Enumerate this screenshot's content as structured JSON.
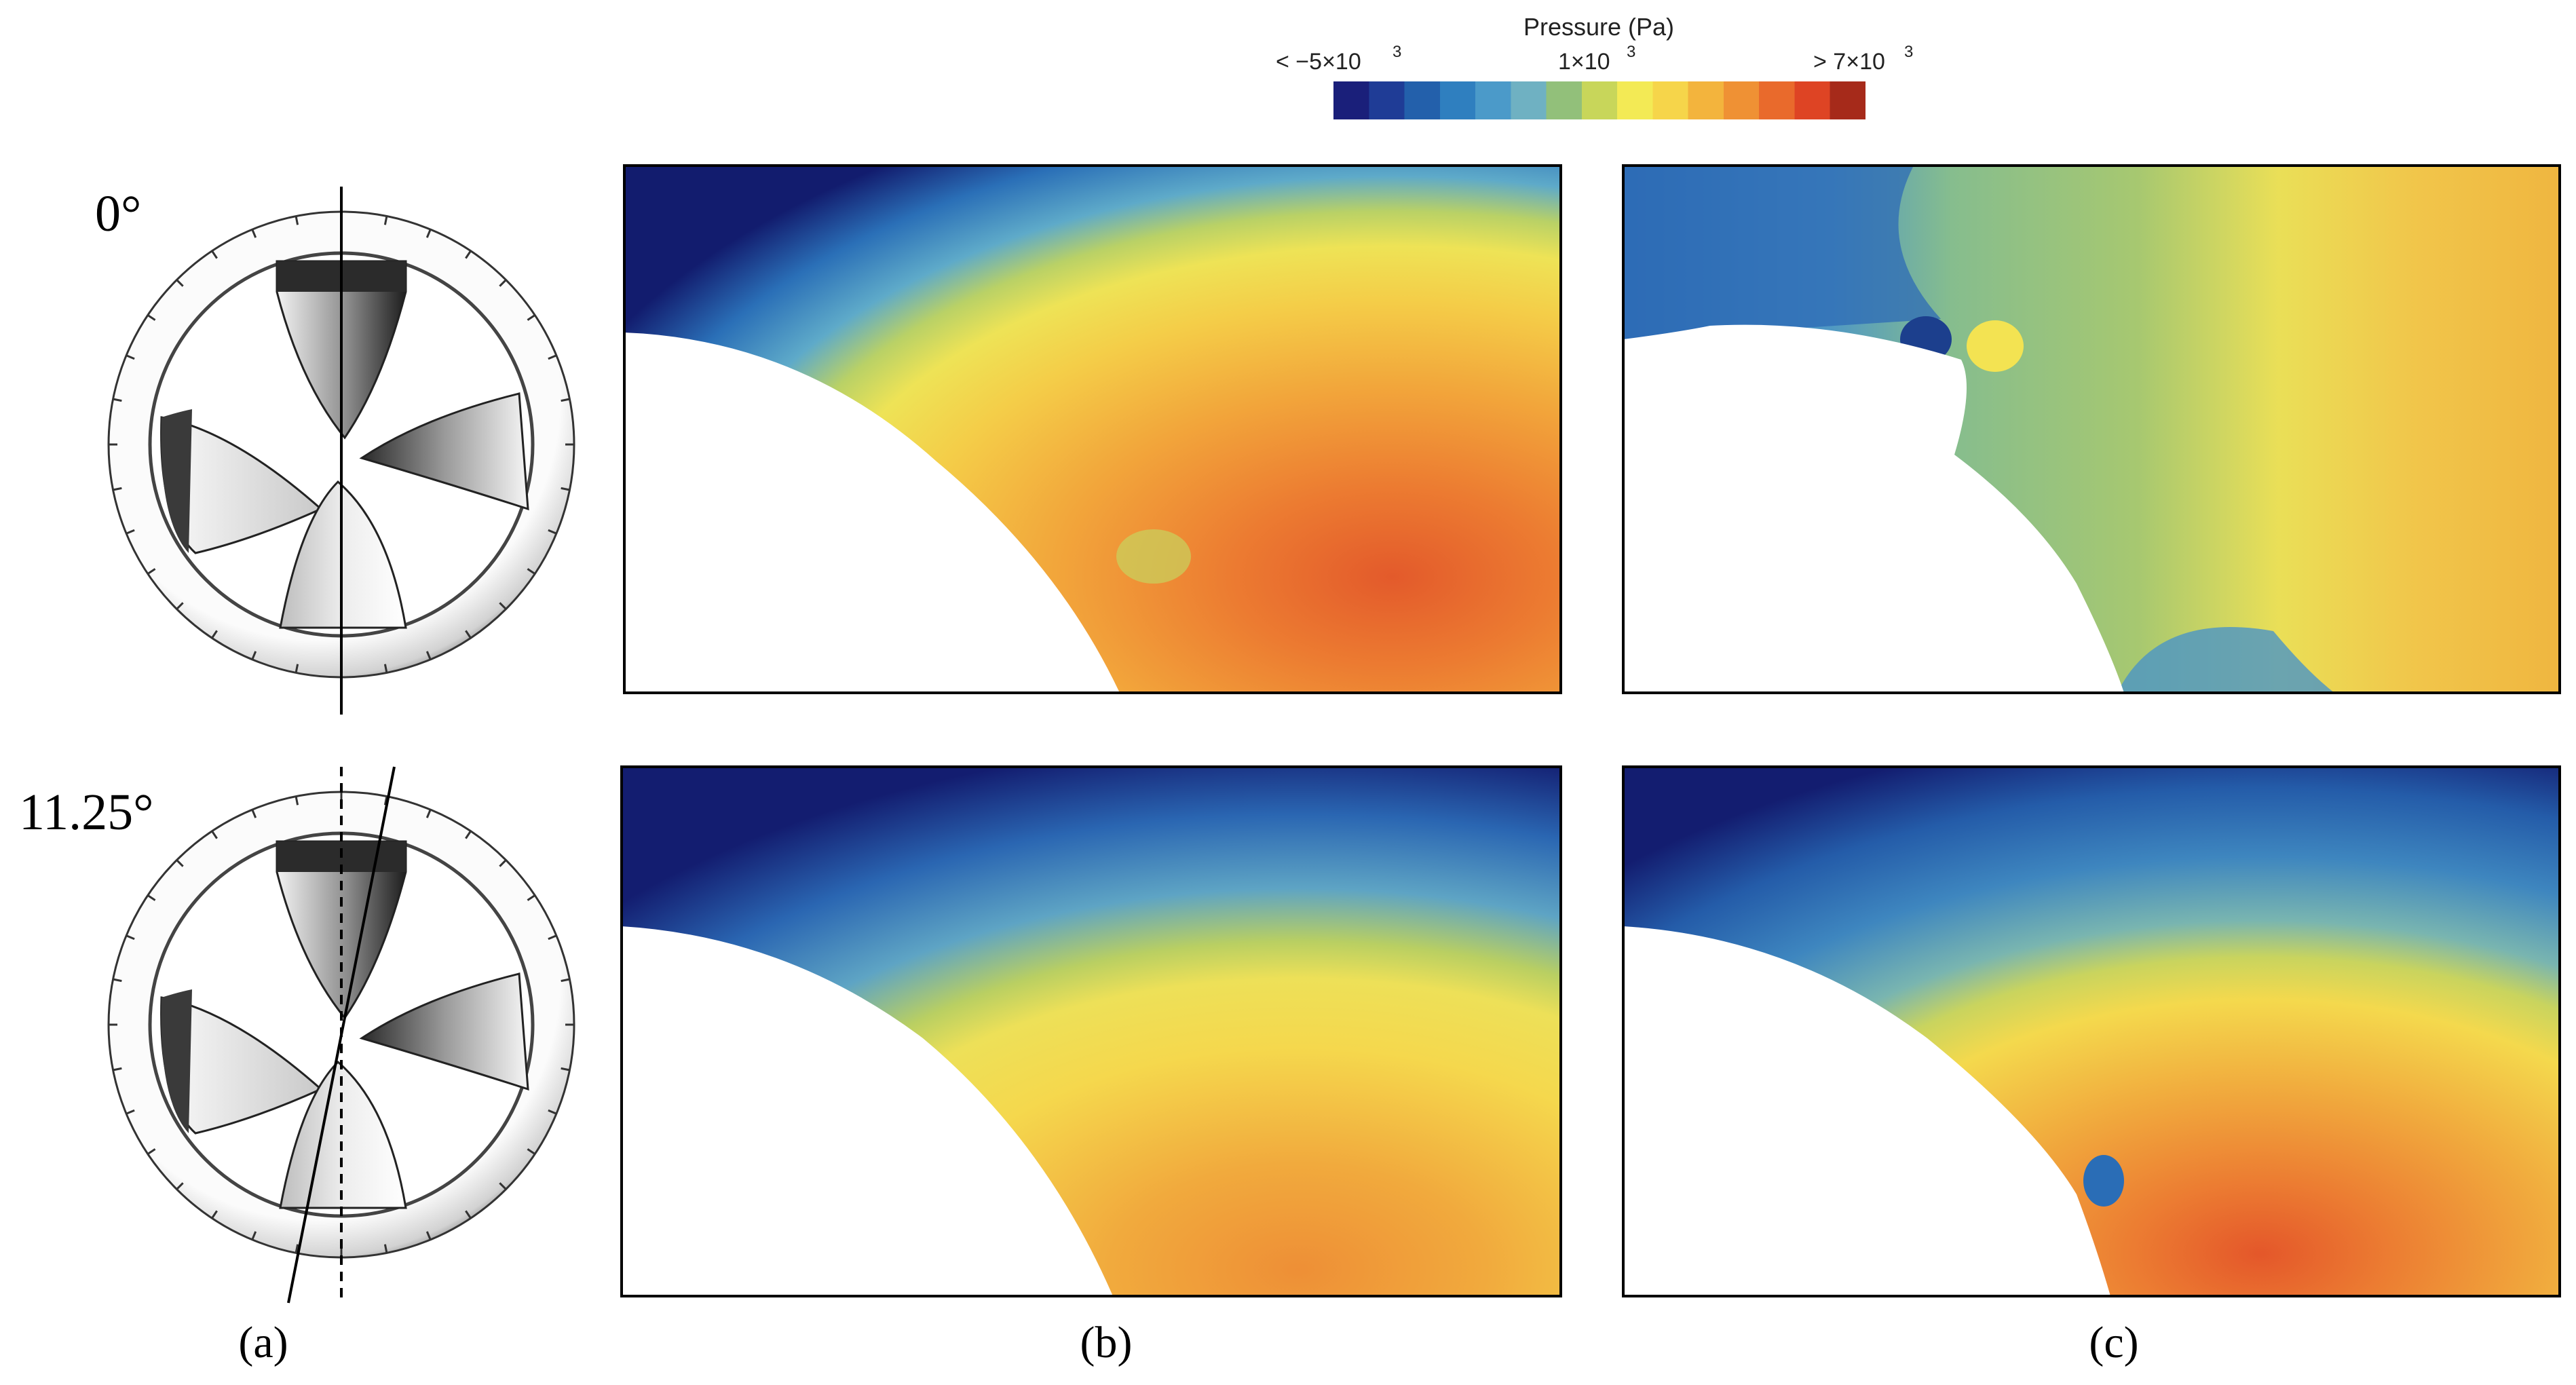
{
  "colorbar": {
    "title": "Pressure (Pa)",
    "min_label": "< −5×10",
    "min_exp": "3",
    "mid_label": "1×10",
    "mid_exp": "3",
    "max_label": "> 7×10",
    "max_exp": "3",
    "colors": [
      "#1a1f7a",
      "#1f3c96",
      "#2360ab",
      "#2f7fbf",
      "#4b9ac9",
      "#6fb1c2",
      "#92c07a",
      "#c8d65a",
      "#f3ea55",
      "#f6d54a",
      "#f3b43d",
      "#ef9134",
      "#e96a2c",
      "#de4424",
      "#a62a1a"
    ]
  },
  "rows": {
    "top_angle": "0°",
    "bottom_angle": "11.25°"
  },
  "panels": {
    "a": "(a)",
    "b": "(b)",
    "c": "(c)"
  }
}
